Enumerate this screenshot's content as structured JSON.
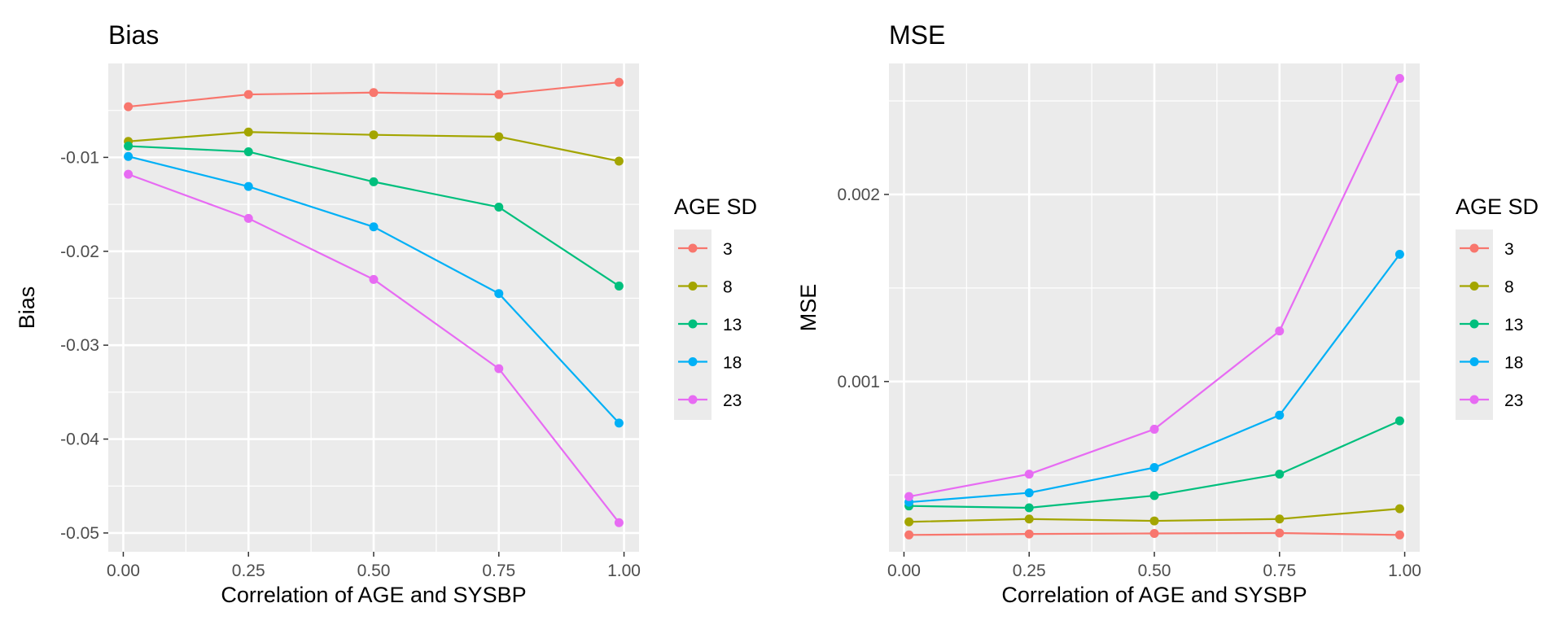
{
  "chart_data": [
    {
      "type": "line",
      "title": "Bias",
      "xlabel": "Correlation of AGE and SYSBP",
      "ylabel": "Bias",
      "x": [
        0.01,
        0.25,
        0.5,
        0.75,
        0.99
      ],
      "xlim": [
        -0.03,
        1.03
      ],
      "ylim": [
        -0.052,
        0.0
      ],
      "xticks": [
        0,
        0.25,
        0.5,
        0.75,
        1
      ],
      "xtick_labels": [
        "0.00",
        "0.25",
        "0.50",
        "0.75",
        "1.00"
      ],
      "yticks": [
        -0.01,
        -0.02,
        -0.03,
        -0.04,
        -0.05
      ],
      "ytick_labels": [
        "-0.01",
        "-0.02",
        "-0.03",
        "-0.04",
        "-0.05"
      ],
      "grid": true,
      "legend": {
        "title": "AGE SD",
        "position": "right"
      },
      "series": [
        {
          "name": "3",
          "color": "#F8766D",
          "values": [
            -0.0046,
            -0.0033,
            -0.0031,
            -0.0033,
            -0.002
          ]
        },
        {
          "name": "8",
          "color": "#A3A500",
          "values": [
            -0.0083,
            -0.0073,
            -0.0076,
            -0.0078,
            -0.0104
          ]
        },
        {
          "name": "13",
          "color": "#00BF7D",
          "values": [
            -0.0088,
            -0.0094,
            -0.0126,
            -0.0153,
            -0.0237
          ]
        },
        {
          "name": "18",
          "color": "#00B0F6",
          "values": [
            -0.0099,
            -0.0131,
            -0.0174,
            -0.0245,
            -0.0383
          ]
        },
        {
          "name": "23",
          "color": "#E76BF3",
          "values": [
            -0.0118,
            -0.0165,
            -0.023,
            -0.0325,
            -0.0489
          ]
        }
      ]
    },
    {
      "type": "line",
      "title": "MSE",
      "xlabel": "Correlation of AGE and SYSBP",
      "ylabel": "MSE",
      "x": [
        0.01,
        0.25,
        0.5,
        0.75,
        0.99
      ],
      "xlim": [
        -0.03,
        1.03
      ],
      "ylim": [
        9e-05,
        0.0027
      ],
      "xticks": [
        0,
        0.25,
        0.5,
        0.75,
        1
      ],
      "xtick_labels": [
        "0.00",
        "0.25",
        "0.50",
        "0.75",
        "1.00"
      ],
      "yticks": [
        0.001,
        0.002
      ],
      "ytick_labels": [
        "0.001",
        "0.002"
      ],
      "grid": true,
      "legend": {
        "title": "AGE SD",
        "position": "right"
      },
      "series": [
        {
          "name": "3",
          "color": "#F8766D",
          "values": [
            0.00018,
            0.000185,
            0.000188,
            0.00019,
            0.00018
          ]
        },
        {
          "name": "8",
          "color": "#A3A500",
          "values": [
            0.00025,
            0.000265,
            0.000255,
            0.000265,
            0.00032
          ]
        },
        {
          "name": "13",
          "color": "#00BF7D",
          "values": [
            0.000335,
            0.000325,
            0.00039,
            0.000505,
            0.00079
          ]
        },
        {
          "name": "18",
          "color": "#00B0F6",
          "values": [
            0.000355,
            0.000405,
            0.00054,
            0.00082,
            0.00168
          ]
        },
        {
          "name": "23",
          "color": "#E76BF3",
          "values": [
            0.000385,
            0.000505,
            0.000745,
            0.00127,
            0.00262
          ]
        }
      ]
    }
  ]
}
